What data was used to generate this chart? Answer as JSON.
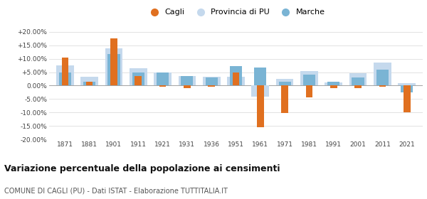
{
  "years": [
    1871,
    1881,
    1901,
    1911,
    1921,
    1931,
    1936,
    1951,
    1961,
    1971,
    1981,
    1991,
    2001,
    2011,
    2021
  ],
  "cagli": [
    10.5,
    1.5,
    17.5,
    3.5,
    -0.5,
    -1.0,
    -0.5,
    4.8,
    -15.5,
    -10.2,
    -4.5,
    -1.0,
    -1.0,
    -0.5,
    -10.0
  ],
  "provincia_pu": [
    7.5,
    3.2,
    13.8,
    6.5,
    4.8,
    3.5,
    3.2,
    3.2,
    -4.0,
    2.5,
    5.5,
    1.2,
    4.5,
    8.5,
    1.0
  ],
  "marche": [
    5.0,
    1.5,
    11.8,
    5.0,
    5.0,
    3.5,
    3.0,
    7.2,
    6.8,
    1.5,
    4.0,
    1.5,
    3.0,
    6.0,
    -2.5
  ],
  "cagli_color": "#e07020",
  "provincia_color": "#c5d9ed",
  "marche_color": "#7ab4d4",
  "title": "Variazione percentuale della popolazione ai censimenti",
  "subtitle": "COMUNE DI CAGLI (PU) - Dati ISTAT - Elaborazione TUTTITALIA.IT",
  "legend_labels": [
    "Cagli",
    "Provincia di PU",
    "Marche"
  ],
  "ylim": [
    -20,
    20
  ],
  "yticks": [
    -20,
    -15,
    -10,
    -5,
    0,
    5,
    10,
    15,
    20
  ],
  "background_color": "#ffffff",
  "grid_color": "#dddddd"
}
